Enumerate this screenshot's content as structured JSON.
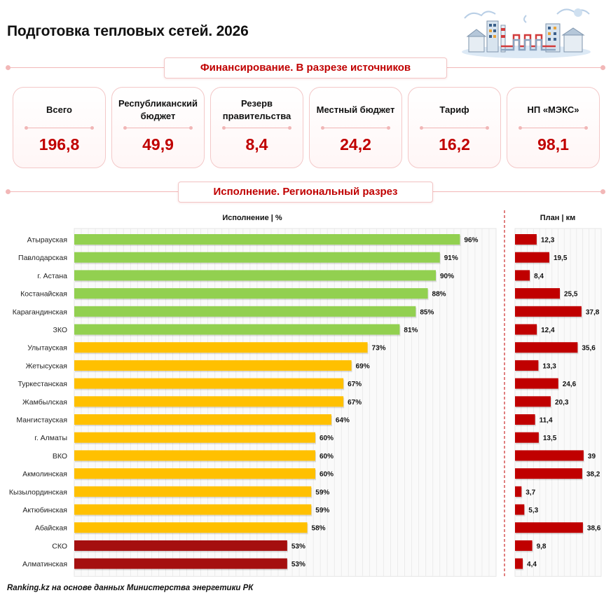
{
  "title": "Подготовка тепловых сетей. 2026",
  "section_funding": "Финансирование. В разрезе источников",
  "section_regions": "Исполнение. Региональный разрез",
  "cards": [
    {
      "label": "Всего",
      "value": "196,8"
    },
    {
      "label": "Республиканский бюджет",
      "value": "49,9"
    },
    {
      "label": "Резерв правительства",
      "value": "8,4"
    },
    {
      "label": "Местный бюджет",
      "value": "24,2"
    },
    {
      "label": "Тариф",
      "value": "16,2"
    },
    {
      "label": "НП «МЭКС»",
      "value": "98,1"
    }
  ],
  "footer": "Ranking.kz на основе данных Министерства энергетики РК",
  "colors": {
    "accent": "#c00000",
    "green": "#92d050",
    "yellow": "#ffc000",
    "darkred": "#a50f0f",
    "plan": "#c00000"
  },
  "chart_data": [
    {
      "type": "bar",
      "orientation": "horizontal",
      "title": "Исполнение | %",
      "categories": [
        "Атырауская",
        "Павлодарская",
        "г. Астана",
        "Костанайская",
        "Карагандинская",
        "ЗКО",
        "Улытауская",
        "Жетысуская",
        "Туркестанская",
        "Жамбылская",
        "Мангистауская",
        "г. Алматы",
        "ВКО",
        "Акмолинская",
        "Кызылординская",
        "Актюбинская",
        "Абайская",
        "СКО",
        "Алматинская"
      ],
      "values": [
        96,
        91,
        90,
        88,
        85,
        81,
        73,
        69,
        67,
        67,
        64,
        60,
        60,
        60,
        59,
        59,
        58,
        53,
        53
      ],
      "labels": [
        "96%",
        "91%",
        "90%",
        "88%",
        "85%",
        "81%",
        "73%",
        "69%",
        "67%",
        "67%",
        "64%",
        "60%",
        "60%",
        "60%",
        "59%",
        "59%",
        "58%",
        "53%",
        "53%"
      ],
      "bar_colors": [
        "#92d050",
        "#92d050",
        "#92d050",
        "#92d050",
        "#92d050",
        "#92d050",
        "#ffc000",
        "#ffc000",
        "#ffc000",
        "#ffc000",
        "#ffc000",
        "#ffc000",
        "#ffc000",
        "#ffc000",
        "#ffc000",
        "#ffc000",
        "#ffc000",
        "#a50f0f",
        "#a50f0f"
      ],
      "xlim": [
        0,
        105
      ],
      "grid": true
    },
    {
      "type": "bar",
      "orientation": "horizontal",
      "title": "План | км",
      "values": [
        12.3,
        19.5,
        8.4,
        25.5,
        37.8,
        12.4,
        35.6,
        13.3,
        24.6,
        20.3,
        11.4,
        13.5,
        39,
        38.2,
        3.7,
        5.3,
        38.6,
        9.8,
        4.4
      ],
      "labels": [
        "12,3",
        "19,5",
        "8,4",
        "25,5",
        "37,8",
        "12,4",
        "35,6",
        "13,3",
        "24,6",
        "20,3",
        "11,4",
        "13,5",
        "39",
        "38,2",
        "3,7",
        "5,3",
        "38,6",
        "9,8",
        "4,4"
      ],
      "xlim": [
        0,
        49
      ],
      "grid": true
    }
  ]
}
